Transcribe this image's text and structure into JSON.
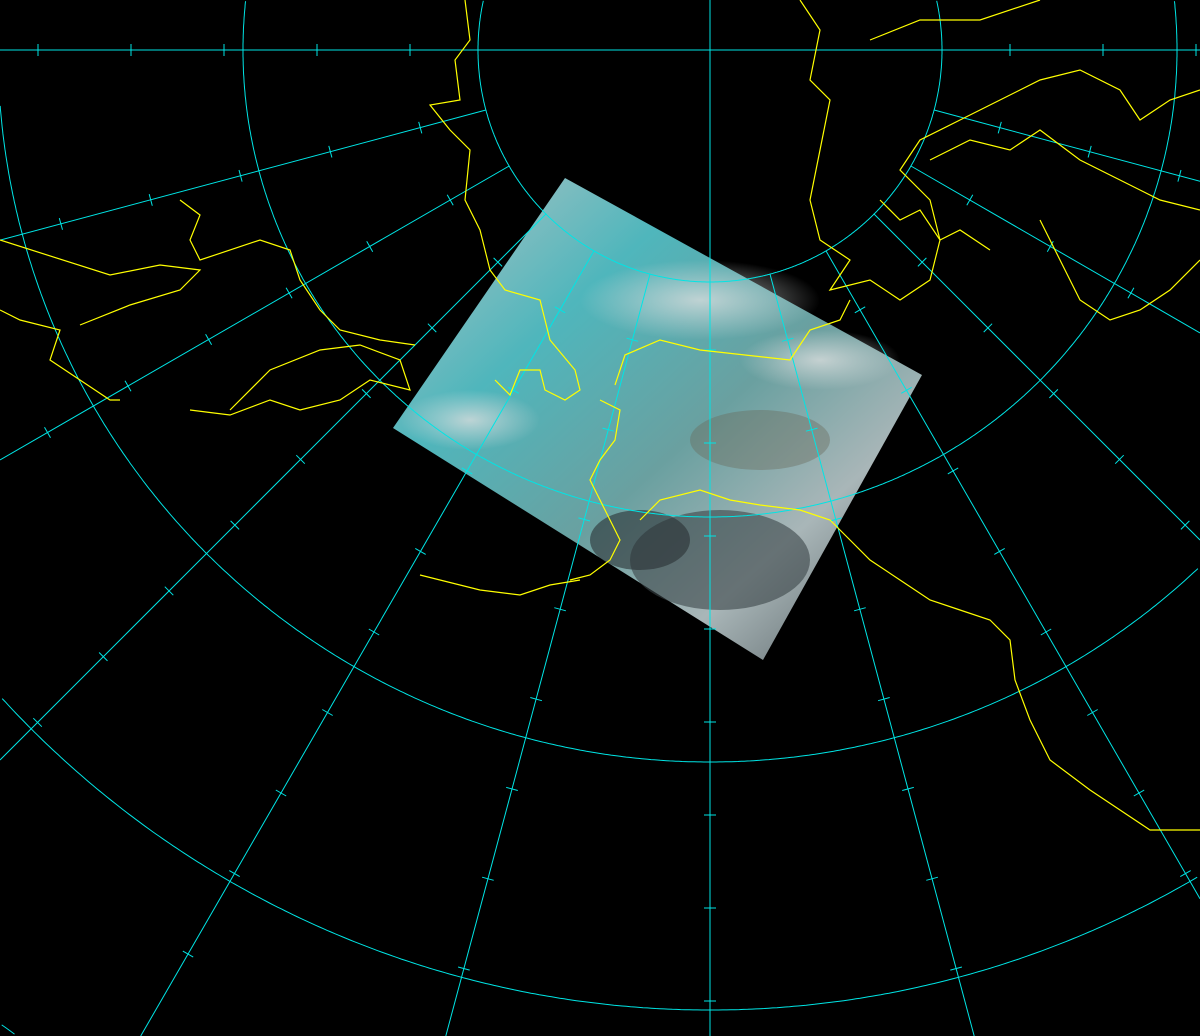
{
  "map": {
    "projection": "polar-stereographic",
    "graticule": {
      "meridian_spacing_deg": 15,
      "color": "#00e5e5"
    },
    "coastline_color": "#ffff00",
    "imagery": {
      "type": "satellite-swath",
      "colors": [
        "#3fb0b8",
        "#8fb8b8",
        "#c8cccc",
        "#5a6a70"
      ]
    }
  }
}
